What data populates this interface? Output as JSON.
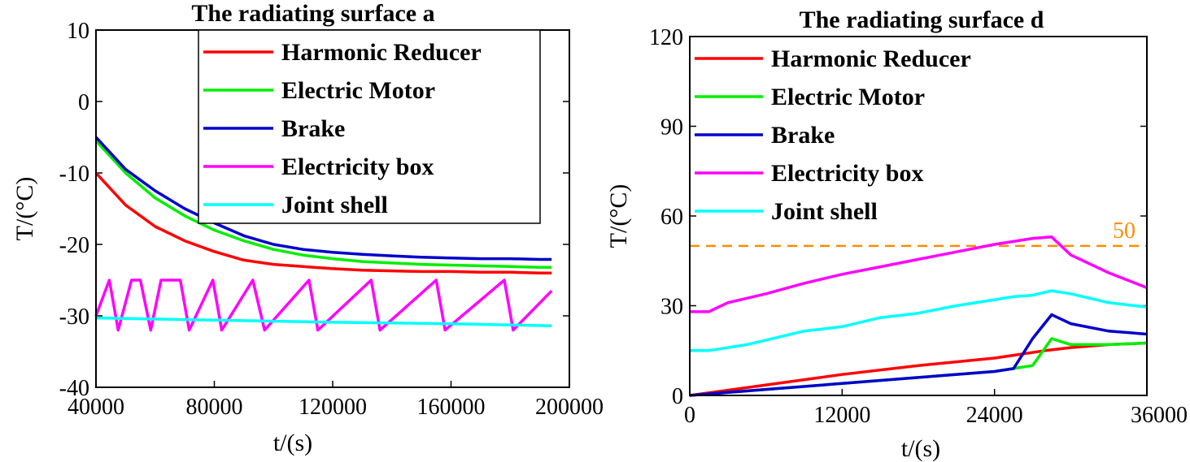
{
  "chart_data": [
    {
      "type": "line",
      "title": "The radiating surface a",
      "xlabel": "t/(s)",
      "ylabel": "T/(°C)",
      "xlim": [
        40000,
        200000
      ],
      "ylim": [
        -40,
        10
      ],
      "xticks": [
        40000,
        80000,
        120000,
        160000,
        200000
      ],
      "yticks": [
        10,
        0,
        -10,
        -20,
        -30,
        -40
      ],
      "legend_position": "top-right",
      "series": [
        {
          "name": "Harmonic Reducer",
          "color": "#ff0000",
          "x": [
            40000,
            50000,
            60000,
            70000,
            80000,
            90000,
            100000,
            110000,
            120000,
            130000,
            140000,
            150000,
            160000,
            170000,
            180000,
            190000,
            194000
          ],
          "y": [
            -10,
            -14.5,
            -17.5,
            -19.5,
            -21,
            -22.2,
            -22.8,
            -23.1,
            -23.4,
            -23.6,
            -23.7,
            -23.8,
            -23.8,
            -23.9,
            -23.9,
            -24,
            -24
          ]
        },
        {
          "name": "Electric Motor",
          "color": "#00ee00",
          "x": [
            40000,
            50000,
            60000,
            70000,
            80000,
            90000,
            100000,
            110000,
            120000,
            130000,
            140000,
            150000,
            160000,
            170000,
            180000,
            190000,
            194000
          ],
          "y": [
            -5.5,
            -10,
            -13.5,
            -16,
            -18,
            -19.5,
            -20.7,
            -21.5,
            -22,
            -22.4,
            -22.6,
            -22.8,
            -22.9,
            -23,
            -23.1,
            -23.2,
            -23.2
          ]
        },
        {
          "name": "Brake",
          "color": "#0000cc",
          "x": [
            40000,
            50000,
            60000,
            70000,
            80000,
            90000,
            100000,
            110000,
            120000,
            130000,
            140000,
            150000,
            160000,
            170000,
            180000,
            190000,
            194000
          ],
          "y": [
            -5,
            -9.5,
            -12.5,
            -15,
            -17,
            -18.8,
            -20,
            -20.7,
            -21.1,
            -21.4,
            -21.6,
            -21.8,
            -21.9,
            -22,
            -22,
            -22.1,
            -22.1
          ]
        },
        {
          "name": "Electricity box",
          "color": "#ff00ff",
          "x": [
            40000,
            44500,
            47500,
            52000,
            55000,
            58500,
            62000,
            68500,
            71500,
            79500,
            82500,
            93000,
            97000,
            112000,
            115000,
            133000,
            136000,
            155000,
            158000,
            178000,
            181000,
            194000
          ],
          "y": [
            -30,
            -25,
            -32,
            -25,
            -25,
            -32,
            -25,
            -25,
            -32,
            -25,
            -32,
            -25,
            -32,
            -25,
            -32,
            -25,
            -32,
            -25,
            -32,
            -25,
            -32,
            -26.5
          ]
        },
        {
          "name": "Joint shell",
          "color": "#00ffff",
          "x": [
            40000,
            80000,
            120000,
            160000,
            194000
          ],
          "y": [
            -30.3,
            -30.6,
            -30.9,
            -31.1,
            -31.4
          ]
        }
      ]
    },
    {
      "type": "line",
      "title": "The radiating surface d",
      "xlabel": "t/(s)",
      "ylabel": "T/(°C)",
      "xlim": [
        0,
        36000
      ],
      "ylim": [
        0,
        120
      ],
      "xticks": [
        0,
        12000,
        24000,
        36000
      ],
      "yticks": [
        120,
        90,
        60,
        30,
        0
      ],
      "legend_position": "top-left",
      "annotations": [
        {
          "text": "50",
          "y": 50,
          "style": "dashed",
          "color": "#ff8c00"
        }
      ],
      "series": [
        {
          "name": "Harmonic Reducer",
          "color": "#ff0000",
          "x": [
            0,
            6000,
            12000,
            18000,
            24000,
            28000,
            30000,
            33000,
            36000
          ],
          "y": [
            0,
            3.5,
            7,
            10,
            12.5,
            15,
            16,
            17,
            17.5
          ]
        },
        {
          "name": "Electric Motor",
          "color": "#00ee00",
          "x": [
            0,
            6000,
            12000,
            18000,
            24000,
            25500,
            27000,
            28500,
            30000,
            33000,
            36000
          ],
          "y": [
            0,
            2,
            4,
            6,
            8,
            9,
            10,
            19,
            17,
            17,
            17.5
          ]
        },
        {
          "name": "Brake",
          "color": "#0000cc",
          "x": [
            0,
            6000,
            12000,
            18000,
            24000,
            25500,
            27000,
            28500,
            30000,
            33000,
            36000
          ],
          "y": [
            0,
            2,
            4,
            6,
            8,
            9,
            19,
            27,
            24,
            21.5,
            20.5
          ]
        },
        {
          "name": "Electricity box",
          "color": "#ff00ff",
          "x": [
            0,
            1500,
            3000,
            6000,
            9000,
            12000,
            15000,
            18000,
            21000,
            24000,
            27000,
            28500,
            30000,
            33000,
            36000
          ],
          "y": [
            28,
            28,
            31,
            34,
            37.5,
            40.5,
            43,
            45.5,
            48,
            50.5,
            52.5,
            53,
            47,
            41,
            36
          ]
        },
        {
          "name": "Joint shell",
          "color": "#00ffff",
          "x": [
            0,
            1500,
            3000,
            4500,
            6000,
            7500,
            9000,
            12000,
            15000,
            18000,
            21000,
            24000,
            25500,
            27000,
            28500,
            30000,
            33000,
            36000
          ],
          "y": [
            15,
            15,
            16,
            17,
            18.5,
            20,
            21.5,
            23,
            26,
            27.5,
            30,
            32,
            33,
            33.5,
            35,
            34,
            31,
            29.5
          ]
        }
      ]
    }
  ]
}
